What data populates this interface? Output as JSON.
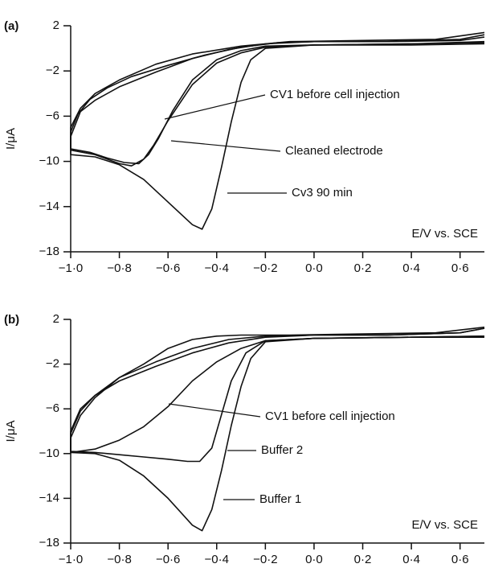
{
  "chart_data": [
    {
      "type": "line",
      "title": "(a)",
      "ylabel": "I/μA",
      "xlabel": "E/V vs. SCE",
      "xlim": [
        -1.0,
        0.7
      ],
      "ylim": [
        -18,
        2
      ],
      "xticks": [
        {
          "value": -1.0,
          "label": "−1·0"
        },
        {
          "value": -0.8,
          "label": "−0·8"
        },
        {
          "value": -0.6,
          "label": "−0·6"
        },
        {
          "value": -0.4,
          "label": "−0·4"
        },
        {
          "value": -0.2,
          "label": "−0·2"
        },
        {
          "value": 0.0,
          "label": "0·0"
        },
        {
          "value": 0.2,
          "label": "0·2"
        },
        {
          "value": 0.4,
          "label": "0·4"
        },
        {
          "value": 0.6,
          "label": "0·6"
        }
      ],
      "yticks": [
        2,
        {
          "value": -2,
          "label": "−2"
        },
        {
          "value": -6,
          "label": "−6"
        },
        {
          "value": -10,
          "label": "−10"
        },
        {
          "value": -14,
          "label": "−14"
        },
        {
          "value": -18,
          "label": "−18"
        }
      ],
      "series": [
        {
          "name": "CV1 before cell injection",
          "color": "#111111",
          "x": [
            0.7,
            0.4,
            0.0,
            -0.2,
            -0.3,
            -0.4,
            -0.5,
            -0.58,
            -0.64,
            -0.68,
            -0.72,
            -0.78,
            -0.85,
            -0.92,
            -1.0,
            -1.0,
            -0.97,
            -0.92,
            -0.85,
            -0.75,
            -0.6,
            -0.45,
            -0.3,
            -0.15,
            0.0,
            0.3,
            0.6,
            0.7
          ],
          "values": [
            0.5,
            0.4,
            0.3,
            0.2,
            -0.2,
            -1.0,
            -2.8,
            -5.5,
            -8.0,
            -9.4,
            -10.2,
            -10.1,
            -9.7,
            -9.2,
            -8.9,
            -7.4,
            -5.8,
            -4.5,
            -3.5,
            -2.5,
            -1.5,
            -0.6,
            0.1,
            0.5,
            0.6,
            0.6,
            0.8,
            1.2
          ]
        },
        {
          "name": "Cleaned electrode",
          "color": "#111111",
          "x": [
            0.7,
            0.4,
            0.0,
            -0.2,
            -0.3,
            -0.4,
            -0.5,
            -0.6,
            -0.66,
            -0.7,
            -0.75,
            -0.8,
            -0.9,
            -1.0,
            -1.0,
            -0.96,
            -0.9,
            -0.8,
            -0.65,
            -0.5,
            -0.35,
            -0.2,
            0.0,
            0.3,
            0.6,
            0.7
          ],
          "values": [
            0.4,
            0.3,
            0.3,
            0.1,
            -0.4,
            -1.3,
            -3.2,
            -6.4,
            -8.6,
            -9.8,
            -10.4,
            -10.2,
            -9.4,
            -9.0,
            -7.8,
            -5.6,
            -4.6,
            -3.4,
            -2.1,
            -0.9,
            -0.1,
            0.4,
            0.6,
            0.6,
            0.7,
            1.0
          ]
        },
        {
          "name": "Cv3 90 min",
          "color": "#111111",
          "x": [
            0.7,
            0.4,
            0.0,
            -0.2,
            -0.26,
            -0.3,
            -0.34,
            -0.38,
            -0.42,
            -0.46,
            -0.5,
            -0.6,
            -0.7,
            -0.8,
            -0.9,
            -1.0,
            -1.0,
            -0.96,
            -0.9,
            -0.8,
            -0.65,
            -0.5,
            -0.3,
            -0.1,
            0.2,
            0.5,
            0.7
          ],
          "values": [
            0.6,
            0.4,
            0.3,
            0.0,
            -1.0,
            -3.0,
            -6.5,
            -10.5,
            -14.2,
            -16.0,
            -15.6,
            -13.6,
            -11.6,
            -10.3,
            -9.6,
            -9.4,
            -7.0,
            -5.3,
            -4.0,
            -2.8,
            -1.4,
            -0.5,
            0.2,
            0.6,
            0.7,
            0.8,
            1.4
          ]
        }
      ]
    },
    {
      "type": "line",
      "title": "(b)",
      "ylabel": "I/μA",
      "xlabel": "E/V vs. SCE",
      "xlim": [
        -1.0,
        0.7
      ],
      "ylim": [
        -18,
        2
      ],
      "xticks": [
        {
          "value": -1.0,
          "label": "−1·0"
        },
        {
          "value": -0.8,
          "label": "−0·8"
        },
        {
          "value": -0.6,
          "label": "−0·6"
        },
        {
          "value": -0.4,
          "label": "−0·4"
        },
        {
          "value": -0.2,
          "label": "−0·2"
        },
        {
          "value": 0.0,
          "label": "0·0"
        },
        {
          "value": 0.2,
          "label": "0·2"
        },
        {
          "value": 0.4,
          "label": "0·4"
        },
        {
          "value": 0.6,
          "label": "0·6"
        }
      ],
      "yticks": [
        2,
        {
          "value": -2,
          "label": "−2"
        },
        {
          "value": -6,
          "label": "−6"
        },
        {
          "value": -10,
          "label": "−10"
        },
        {
          "value": -14,
          "label": "−14"
        },
        {
          "value": -18,
          "label": "−18"
        }
      ],
      "series": [
        {
          "name": "CV1 before cell injection",
          "color": "#111111",
          "x": [
            0.7,
            0.4,
            0.0,
            -0.2,
            -0.3,
            -0.4,
            -0.5,
            -0.6,
            -0.7,
            -0.8,
            -0.9,
            -1.0,
            -1.0,
            -0.96,
            -0.9,
            -0.8,
            -0.65,
            -0.5,
            -0.35,
            -0.2,
            0.0,
            0.3,
            0.6,
            0.7
          ],
          "values": [
            0.5,
            0.4,
            0.3,
            0.1,
            -0.6,
            -1.8,
            -3.5,
            -5.8,
            -7.6,
            -8.8,
            -9.6,
            -9.9,
            -8.0,
            -6.0,
            -4.8,
            -3.5,
            -2.2,
            -1.0,
            -0.1,
            0.4,
            0.6,
            0.6,
            0.8,
            1.2
          ]
        },
        {
          "name": "Buffer 2",
          "color": "#111111",
          "x": [
            0.7,
            0.4,
            0.0,
            -0.2,
            -0.28,
            -0.34,
            -0.38,
            -0.42,
            -0.47,
            -0.52,
            -0.6,
            -0.7,
            -0.8,
            -0.9,
            -1.0,
            -1.0,
            -0.96,
            -0.9,
            -0.8,
            -0.65,
            -0.5,
            -0.35,
            -0.2,
            0.0,
            0.3,
            0.6,
            0.7
          ],
          "values": [
            0.4,
            0.4,
            0.3,
            0.1,
            -1.0,
            -3.5,
            -6.5,
            -9.5,
            -10.7,
            -10.7,
            -10.5,
            -10.3,
            -10.1,
            -9.9,
            -9.8,
            -8.2,
            -6.2,
            -4.8,
            -3.2,
            -1.8,
            -0.6,
            0.2,
            0.5,
            0.6,
            0.6,
            0.8,
            1.2
          ]
        },
        {
          "name": "Buffer 1",
          "color": "#111111",
          "x": [
            0.7,
            0.4,
            0.0,
            -0.2,
            -0.26,
            -0.3,
            -0.34,
            -0.38,
            -0.42,
            -0.46,
            -0.5,
            -0.6,
            -0.7,
            -0.8,
            -0.9,
            -1.0,
            -1.0,
            -0.96,
            -0.9,
            -0.8,
            -0.7,
            -0.6,
            -0.5,
            -0.4,
            -0.3,
            -0.1,
            0.2,
            0.5,
            0.7
          ],
          "values": [
            0.5,
            0.4,
            0.3,
            0.0,
            -1.5,
            -4.0,
            -7.5,
            -11.5,
            -15.0,
            -16.9,
            -16.4,
            -14.0,
            -12.0,
            -10.6,
            -10.0,
            -9.9,
            -8.6,
            -6.6,
            -5.0,
            -3.2,
            -2.0,
            -0.6,
            0.2,
            0.5,
            0.6,
            0.6,
            0.7,
            0.8,
            1.3
          ]
        }
      ]
    }
  ]
}
